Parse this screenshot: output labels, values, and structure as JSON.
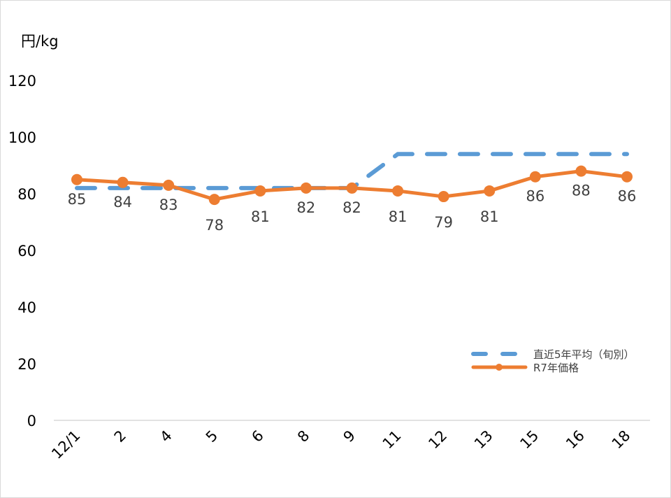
{
  "chart_data": {
    "type": "line",
    "unit_label": "円/kg",
    "categories": [
      "12/1",
      "2",
      "4",
      "5",
      "6",
      "8",
      "9",
      "11",
      "12",
      "13",
      "15",
      "16",
      "18"
    ],
    "ylim": [
      0,
      120
    ],
    "yticks": [
      0,
      20,
      40,
      60,
      80,
      100,
      120
    ],
    "grid": false,
    "legend_position": "bottom-right",
    "series": [
      {
        "name": "直近5年平均（旬別）",
        "color": "#5B9BD5",
        "style": "dashed",
        "markers": false,
        "values": [
          82,
          82,
          82,
          82,
          82,
          82,
          82,
          94,
          94,
          94,
          94,
          94,
          94
        ]
      },
      {
        "name": "R7年価格",
        "color": "#ED7D31",
        "style": "solid",
        "markers": true,
        "data_labels": true,
        "values": [
          85,
          84,
          83,
          78,
          81,
          82,
          82,
          81,
          79,
          81,
          86,
          88,
          86
        ]
      }
    ]
  }
}
